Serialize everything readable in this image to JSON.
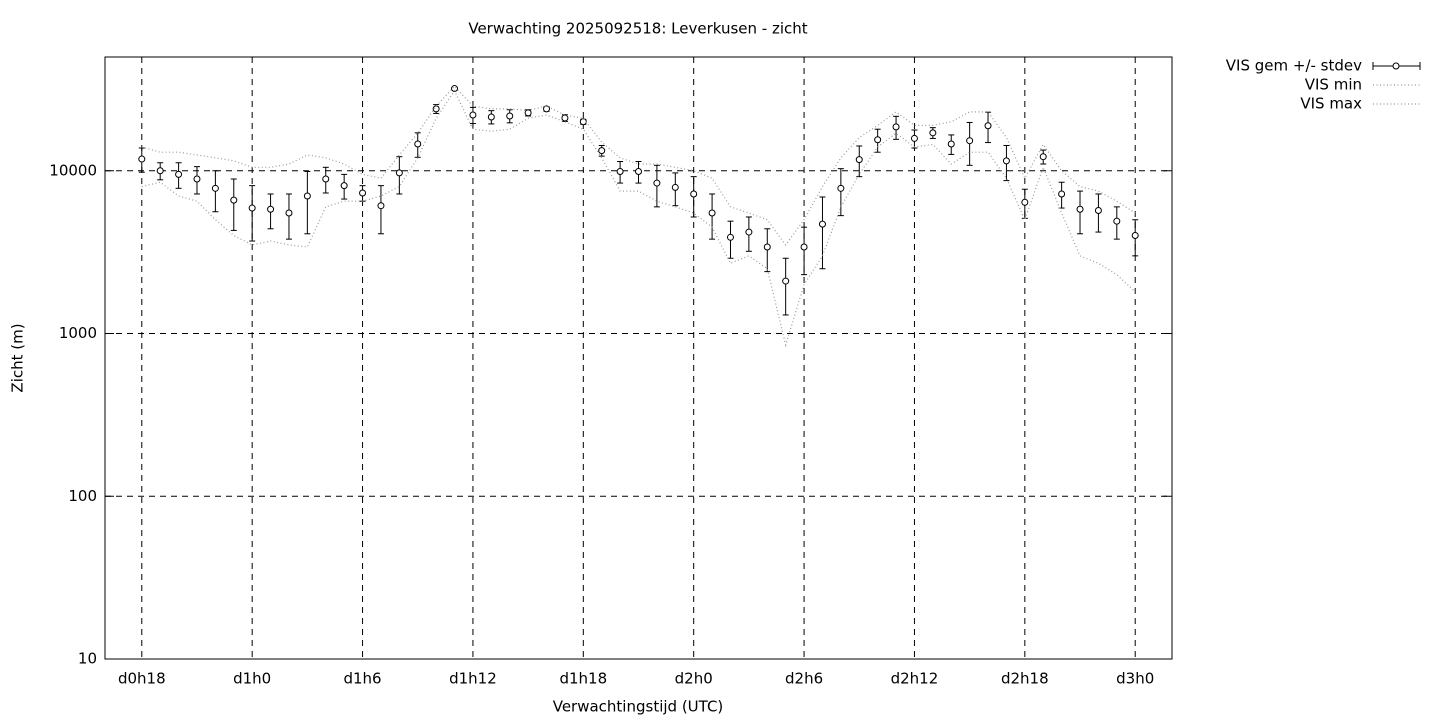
{
  "chart_data": {
    "type": "errorbar-line",
    "title": "Verwachting 2025092518: Leverkusen - zicht",
    "x_label": "Verwachtingstijd (UTC)",
    "y_label": "Zicht (m)",
    "x": [
      18,
      19,
      20,
      21,
      22,
      23,
      24,
      25,
      26,
      27,
      28,
      29,
      30,
      31,
      32,
      33,
      34,
      35,
      36,
      37,
      38,
      39,
      40,
      41,
      42,
      43,
      44,
      45,
      46,
      47,
      48,
      49,
      50,
      51,
      52,
      53,
      54,
      55,
      56,
      57,
      58,
      59,
      60,
      61,
      62,
      63,
      64,
      65,
      66,
      67,
      68,
      69,
      70,
      71,
      72
    ],
    "series": [
      {
        "name": "VIS gem +/- stdev",
        "color": "#000000",
        "values": [
          11800,
          10000,
          9500,
          8900,
          7800,
          6600,
          5900,
          5800,
          5500,
          7000,
          8900,
          8100,
          7300,
          6100,
          9700,
          14600,
          24000,
          32000,
          22000,
          21400,
          21700,
          22700,
          24000,
          21100,
          20000,
          13300,
          9900,
          9900,
          8400,
          7900,
          7200,
          5500,
          3900,
          4200,
          3400,
          2100,
          3400,
          4700,
          7800,
          11700,
          15500,
          18600,
          15800,
          17100,
          14600,
          15300,
          18900,
          11500,
          6400,
          12200,
          7200,
          5800,
          5700,
          4900,
          4000
        ],
        "errors": [
          2000,
          1200,
          1700,
          1700,
          2200,
          2300,
          2200,
          1400,
          1700,
          2900,
          1600,
          1400,
          800,
          2000,
          2500,
          2500,
          1500,
          500,
          2500,
          2000,
          2000,
          1000,
          800,
          1000,
          700,
          1000,
          1500,
          1500,
          2400,
          1800,
          2000,
          1700,
          1000,
          1000,
          1000,
          800,
          1100,
          2200,
          2500,
          2500,
          2500,
          3000,
          2000,
          1300,
          2000,
          4500,
          4000,
          2800,
          1300,
          1200,
          1300,
          1700,
          1500,
          1100,
          1000
        ]
      },
      {
        "name": "VIS min",
        "color": "#999999",
        "values": [
          8000,
          8500,
          7000,
          6500,
          5000,
          4000,
          3500,
          3700,
          3500,
          3400,
          6000,
          6500,
          6500,
          7000,
          8000,
          12000,
          21000,
          31000,
          18000,
          17500,
          18000,
          21000,
          22000,
          20000,
          18000,
          12000,
          7500,
          7500,
          6500,
          6000,
          5500,
          4500,
          2700,
          3000,
          2500,
          850,
          2000,
          3000,
          6000,
          9500,
          14000,
          17000,
          14000,
          14500,
          11000,
          13000,
          13000,
          9000,
          5000,
          10500,
          5500,
          3000,
          2700,
          2300,
          1800
        ]
      },
      {
        "name": "VIS max",
        "color": "#999999",
        "values": [
          14000,
          13000,
          13000,
          12500,
          12000,
          11500,
          10500,
          10500,
          11000,
          12500,
          12000,
          11000,
          9500,
          9000,
          12500,
          17000,
          25000,
          33000,
          25000,
          24000,
          24000,
          23500,
          25000,
          22000,
          21000,
          15000,
          12000,
          11000,
          11000,
          10500,
          10000,
          9000,
          6000,
          5500,
          5000,
          3500,
          5000,
          8000,
          12000,
          16000,
          19000,
          23000,
          19000,
          19000,
          20000,
          23000,
          23000,
          16000,
          9000,
          14500,
          10000,
          8000,
          7500,
          6500,
          5500
        ]
      }
    ],
    "xlim": [
      16,
      74
    ],
    "xticks": [
      {
        "value": 18,
        "label": "d0h18"
      },
      {
        "value": 24,
        "label": "d1h0"
      },
      {
        "value": 30,
        "label": "d1h6"
      },
      {
        "value": 36,
        "label": "d1h12"
      },
      {
        "value": 42,
        "label": "d1h18"
      },
      {
        "value": 48,
        "label": "d2h0"
      },
      {
        "value": 54,
        "label": "d2h6"
      },
      {
        "value": 60,
        "label": "d2h12"
      },
      {
        "value": 66,
        "label": "d2h18"
      },
      {
        "value": 72,
        "label": "d3h0"
      }
    ],
    "ylim": [
      10,
      50000
    ],
    "yticks": [
      10,
      100,
      1000,
      10000
    ],
    "log_y": true,
    "grid": true,
    "legend": "outside-right"
  }
}
